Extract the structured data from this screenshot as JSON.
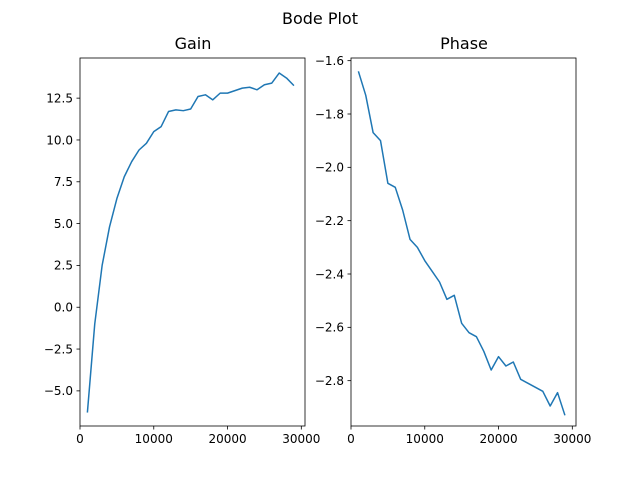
{
  "figure": {
    "suptitle": "Bode Plot"
  },
  "chart_data": [
    {
      "type": "line",
      "title": "Gain",
      "xlabel": "",
      "ylabel": "",
      "xlim": [
        0,
        30500
      ],
      "ylim": [
        -7.1,
        14.9
      ],
      "xticks": [
        0,
        10000,
        20000,
        30000
      ],
      "xtick_labels": [
        "0",
        "10000",
        "20000",
        "30000"
      ],
      "yticks": [
        -5.0,
        -2.5,
        0.0,
        2.5,
        5.0,
        7.5,
        10.0,
        12.5
      ],
      "ytick_labels": [
        "−5.0",
        "−2.5",
        "0.0",
        "2.5",
        "5.0",
        "7.5",
        "10.0",
        "12.5"
      ],
      "grid": false,
      "series": [
        {
          "color": "#1f77b4",
          "x": [
            1000,
            2000,
            3000,
            4000,
            5000,
            6000,
            7000,
            8000,
            9000,
            10000,
            11000,
            12000,
            13000,
            14000,
            15000,
            16000,
            17000,
            18000,
            19000,
            20000,
            21000,
            22000,
            23000,
            24000,
            25000,
            26000,
            27000,
            28000,
            29000
          ],
          "y": [
            -6.3,
            -1.0,
            2.5,
            4.8,
            6.5,
            7.8,
            8.7,
            9.4,
            9.8,
            10.5,
            10.8,
            11.7,
            11.8,
            11.75,
            11.85,
            12.6,
            12.7,
            12.4,
            12.8,
            12.8,
            12.95,
            13.1,
            13.15,
            13.0,
            13.3,
            13.4,
            14.0,
            13.7,
            13.25
          ]
        }
      ]
    },
    {
      "type": "line",
      "title": "Phase",
      "xlabel": "",
      "ylabel": "",
      "xlim": [
        0,
        30500
      ],
      "ylim": [
        -2.97,
        -1.59
      ],
      "xticks": [
        0,
        10000,
        20000,
        30000
      ],
      "xtick_labels": [
        "0",
        "10000",
        "20000",
        "30000"
      ],
      "yticks": [
        -2.8,
        -2.6,
        -2.4,
        -2.2,
        -2.0,
        -1.8,
        -1.6
      ],
      "ytick_labels": [
        "−2.8",
        "−2.6",
        "−2.4",
        "−2.2",
        "−2.0",
        "−1.8",
        "−1.6"
      ],
      "grid": false,
      "series": [
        {
          "color": "#1f77b4",
          "x": [
            1000,
            2000,
            3000,
            4000,
            5000,
            6000,
            7000,
            8000,
            9000,
            10000,
            11000,
            12000,
            13000,
            14000,
            15000,
            16000,
            17000,
            18000,
            19000,
            20000,
            21000,
            22000,
            23000,
            24000,
            25000,
            26000,
            27000,
            28000,
            29000
          ],
          "y": [
            -1.64,
            -1.73,
            -1.87,
            -1.9,
            -2.06,
            -2.075,
            -2.16,
            -2.27,
            -2.3,
            -2.35,
            -2.39,
            -2.43,
            -2.495,
            -2.48,
            -2.585,
            -2.62,
            -2.635,
            -2.69,
            -2.76,
            -2.71,
            -2.745,
            -2.73,
            -2.795,
            -2.81,
            -2.825,
            -2.84,
            -2.895,
            -2.845,
            -2.93
          ]
        }
      ]
    }
  ]
}
